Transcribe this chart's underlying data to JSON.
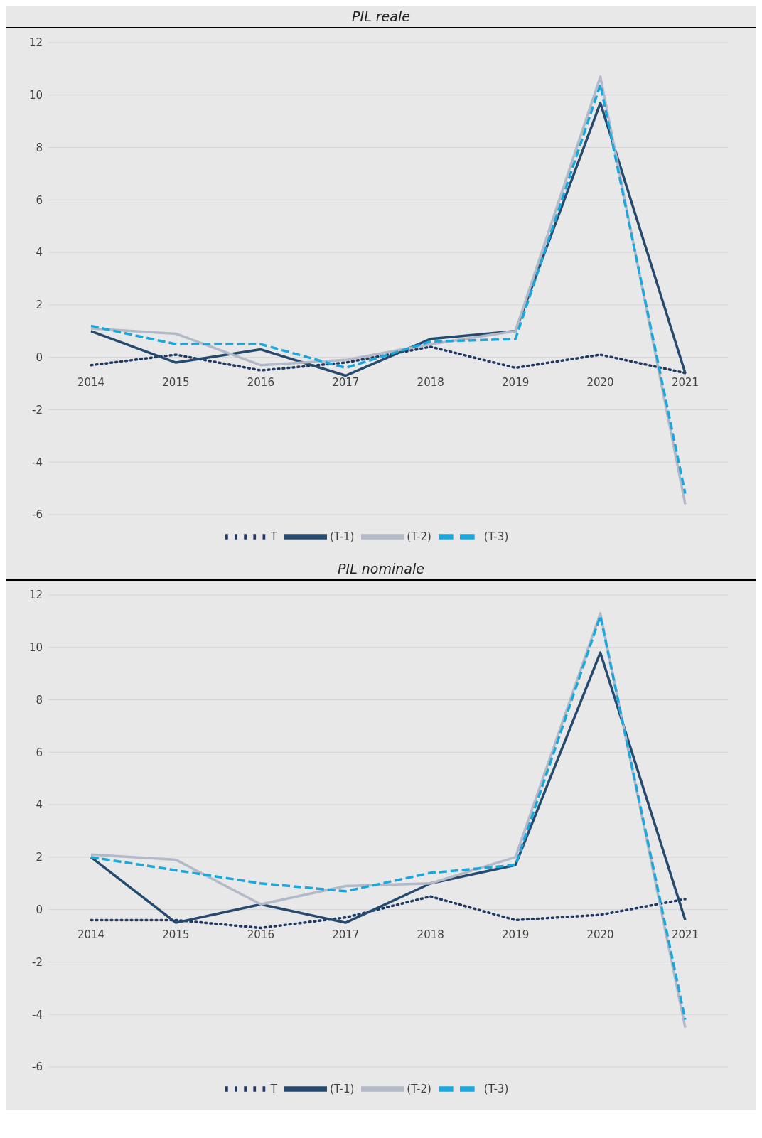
{
  "chart_data": [
    {
      "type": "line",
      "title": "PIL reale",
      "categories": [
        "2014",
        "2015",
        "2016",
        "2017",
        "2018",
        "2019",
        "2020",
        "2021"
      ],
      "ylim": [
        -6,
        12
      ],
      "yticks": [
        -6,
        -4,
        -2,
        0,
        2,
        4,
        6,
        8,
        10,
        12
      ],
      "grid": "y",
      "legend": "bottom",
      "marker": "none",
      "series": [
        {
          "name": "T",
          "color": "#1f3864",
          "line_style": "dotted",
          "values": [
            -0.3,
            0.1,
            -0.5,
            -0.2,
            0.4,
            -0.4,
            0.1,
            -0.6
          ]
        },
        {
          "name": "(T-1)",
          "color": "#264a6e",
          "line_style": "solid",
          "values": [
            1.0,
            -0.2,
            0.3,
            -0.7,
            0.7,
            1.0,
            9.7,
            -0.6
          ]
        },
        {
          "name": "(T-2)",
          "color": "#b4b9c8",
          "line_style": "solid",
          "values": [
            1.1,
            0.9,
            -0.3,
            -0.1,
            0.5,
            1.0,
            10.7,
            -5.6
          ]
        },
        {
          "name": "(T-3)",
          "color": "#1aa7de",
          "line_style": "dashed",
          "values": [
            1.2,
            0.5,
            0.5,
            -0.4,
            0.6,
            0.7,
            10.4,
            -5.2
          ]
        }
      ]
    },
    {
      "type": "line",
      "title": "PIL nominale",
      "categories": [
        "2014",
        "2015",
        "2016",
        "2017",
        "2018",
        "2019",
        "2020",
        "2021"
      ],
      "ylim": [
        -6,
        12
      ],
      "yticks": [
        -6,
        -4,
        -2,
        0,
        2,
        4,
        6,
        8,
        10,
        12
      ],
      "grid": "y",
      "legend": "bottom",
      "marker": "none",
      "series": [
        {
          "name": "T",
          "color": "#1f3864",
          "line_style": "dotted",
          "values": [
            -0.4,
            -0.4,
            -0.7,
            -0.3,
            0.5,
            -0.4,
            -0.2,
            0.4
          ]
        },
        {
          "name": "(T-1)",
          "color": "#264a6e",
          "line_style": "solid",
          "values": [
            2.0,
            -0.5,
            0.2,
            -0.5,
            1.0,
            1.7,
            9.8,
            -0.4
          ]
        },
        {
          "name": "(T-2)",
          "color": "#b4b9c8",
          "line_style": "solid",
          "values": [
            2.1,
            1.9,
            0.2,
            0.9,
            1.0,
            2.0,
            11.3,
            -4.5
          ]
        },
        {
          "name": "(T-3)",
          "color": "#1aa7de",
          "line_style": "dashed",
          "values": [
            2.0,
            1.5,
            1.0,
            0.7,
            1.4,
            1.7,
            11.2,
            -4.2
          ]
        }
      ]
    }
  ]
}
